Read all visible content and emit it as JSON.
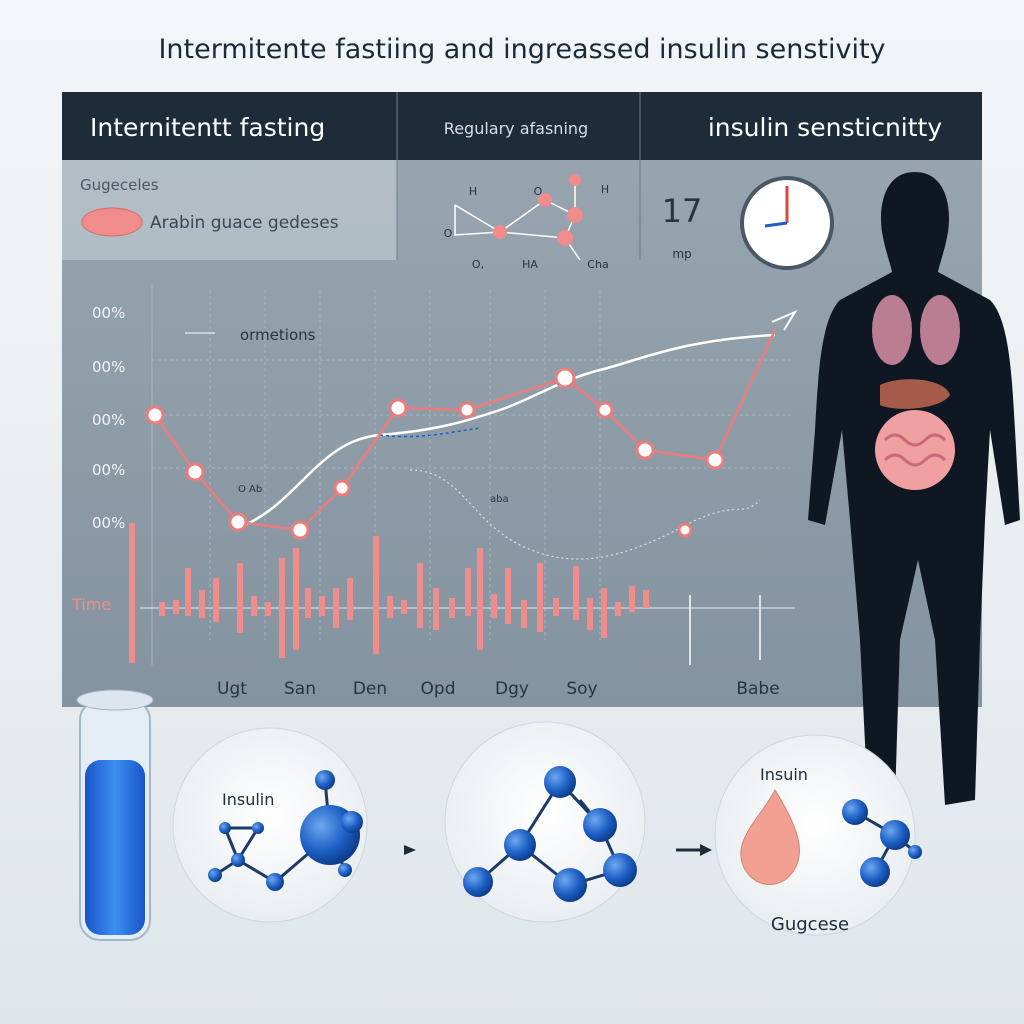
{
  "title": "Intermitente fastiing  and  ingreassed insulin senstivity",
  "header": [
    "Internitentt fasting",
    "Regulary afasning",
    "insulin sensticnitty"
  ],
  "legend": {
    "heading": "Gugeceles",
    "label": "Arabin guace gedeses"
  },
  "molecule_labels": [
    "H",
    "O",
    "H",
    "O",
    "O,",
    "HA",
    "Cha"
  ],
  "clock": {
    "number": "17",
    "unit": "mp"
  },
  "chart": {
    "y_labels": [
      "00%",
      "00%",
      "00%",
      "00%",
      "00%"
    ],
    "time_label": "Time",
    "annotation": "ormetions",
    "notes": [
      "O Ab",
      "aba"
    ],
    "x_labels": [
      "Ugt",
      "San",
      "Den",
      "Opd",
      "Dgy",
      "Soy",
      "Babe"
    ]
  },
  "circles": [
    "Insulin",
    "Insuin",
    "Gugcese"
  ]
}
